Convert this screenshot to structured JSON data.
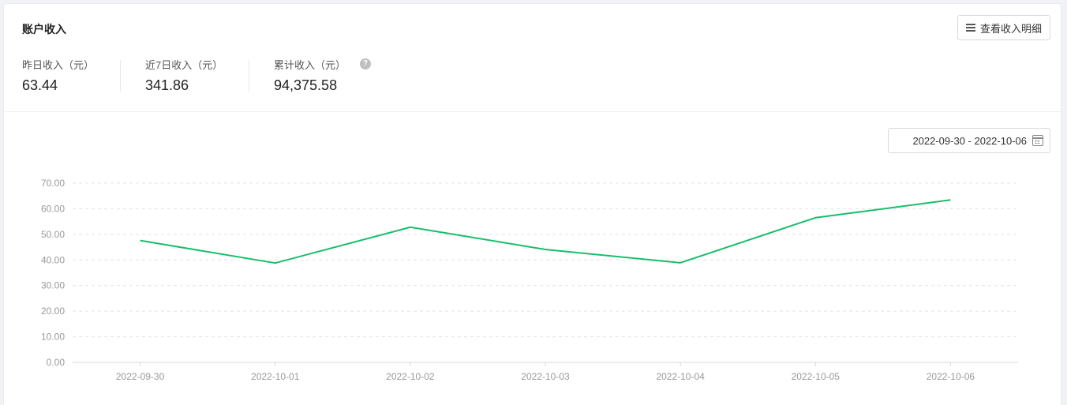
{
  "card": {
    "title": "账户收入",
    "detail_button_label": "查看收入明细",
    "detail_button_icon": "menu-icon"
  },
  "stats": [
    {
      "label": "昨日收入（元）",
      "value": "63.44"
    },
    {
      "label": "近7日收入（元）",
      "value": "341.86"
    },
    {
      "label": "累计收入（元）",
      "value": "94,375.58",
      "help_icon": "?"
    }
  ],
  "date_range": {
    "value": "2022-09-30 - 2022-10-06",
    "icon": "calendar-icon"
  },
  "chart_data": {
    "type": "line",
    "categories": [
      "2022-09-30",
      "2022-10-01",
      "2022-10-02",
      "2022-10-03",
      "2022-10-04",
      "2022-10-05",
      "2022-10-06"
    ],
    "series": [
      {
        "values": [
          47.6,
          38.8,
          52.8,
          44.1,
          38.9,
          56.5,
          63.44
        ],
        "color": "#19be6b"
      }
    ],
    "ylim": [
      0,
      70
    ],
    "yticks": [
      "0.00",
      "10.00",
      "20.00",
      "30.00",
      "40.00",
      "50.00",
      "60.00",
      "70.00"
    ],
    "grid": true,
    "title": "",
    "xlabel": "",
    "ylabel": ""
  }
}
